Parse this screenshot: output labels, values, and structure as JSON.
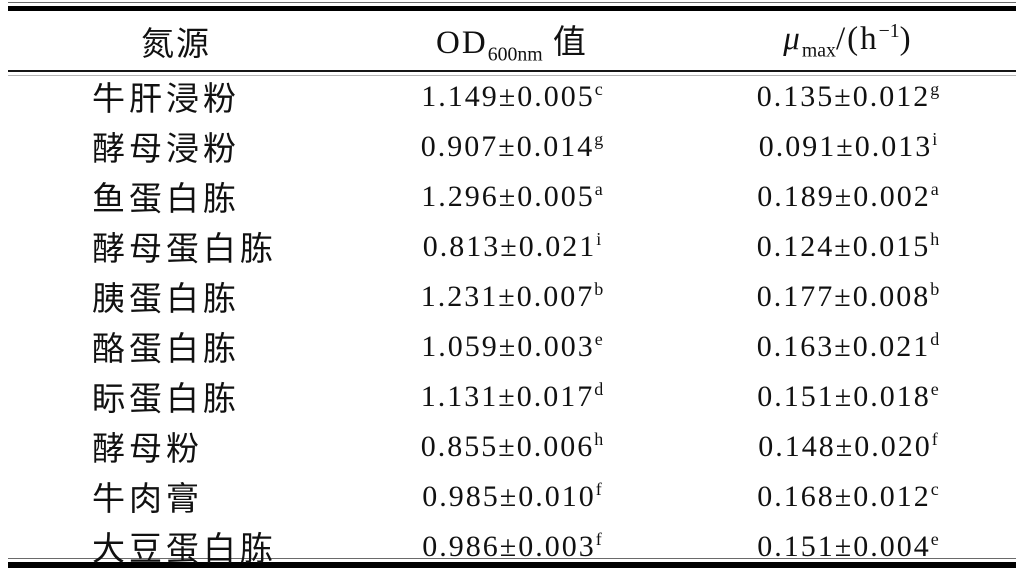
{
  "table": {
    "header": {
      "col1": "氮源",
      "col2": {
        "prefix": "OD",
        "sub": "600nm",
        "suffix": " 值"
      },
      "col3": {
        "mu": "μ",
        "sub": "max",
        "mid": "/(h",
        "sup": "−1",
        "close": ")"
      }
    },
    "rows": [
      {
        "name": "牛肝浸粉",
        "od": "1.149±0.005",
        "od_sup": "c",
        "mu": "0.135±0.012",
        "mu_sup": "g"
      },
      {
        "name": "酵母浸粉",
        "od": "0.907±0.014",
        "od_sup": "g",
        "mu": "0.091±0.013",
        "mu_sup": "i"
      },
      {
        "name": "鱼蛋白胨",
        "od": "1.296±0.005",
        "od_sup": "a",
        "mu": "0.189±0.002",
        "mu_sup": "a"
      },
      {
        "name": "酵母蛋白胨",
        "od": "0.813±0.021",
        "od_sup": "i",
        "mu": "0.124±0.015",
        "mu_sup": "h"
      },
      {
        "name": "胰蛋白胨",
        "od": "1.231±0.007",
        "od_sup": "b",
        "mu": "0.177±0.008",
        "mu_sup": "b"
      },
      {
        "name": "酪蛋白胨",
        "od": "1.059±0.003",
        "od_sup": "e",
        "mu": "0.163±0.021",
        "mu_sup": "d"
      },
      {
        "name": "眎蛋白胨",
        "od": "1.131±0.017",
        "od_sup": "d",
        "mu": "0.151±0.018",
        "mu_sup": "e"
      },
      {
        "name": "酵母粉",
        "od": "0.855±0.006",
        "od_sup": "h",
        "mu": "0.148±0.020",
        "mu_sup": "f"
      },
      {
        "name": "牛肉膏",
        "od": "0.985±0.010",
        "od_sup": "f",
        "mu": "0.168±0.012",
        "mu_sup": "c"
      },
      {
        "name": "大豆蛋白胨",
        "od": "0.986±0.003",
        "od_sup": "f",
        "mu": "0.151±0.004",
        "mu_sup": "e"
      }
    ]
  },
  "colors": {
    "text": "#111111",
    "rule_thick": "#000000",
    "rule_thin": "#6a6a6a",
    "background": "#ffffff"
  }
}
